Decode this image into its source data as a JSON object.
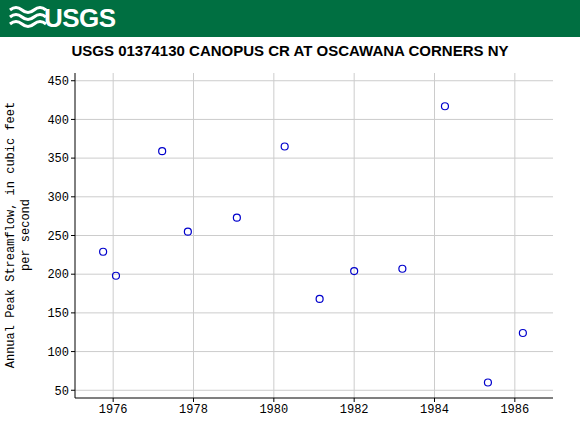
{
  "banner": "USGS",
  "chart_data": {
    "type": "scatter",
    "title": "USGS 01374130 CANOPUS CR AT OSCAWANA CORNERS NY",
    "y_label": "Annual Peak Streamflow, in cubic feet per second",
    "x": [
      1975.75,
      1976.07,
      1977.22,
      1977.86,
      1979.08,
      1980.27,
      1981.14,
      1982.0,
      1983.2,
      1984.26,
      1985.33,
      1986.2
    ],
    "values": [
      229,
      198,
      359,
      255,
      273,
      365,
      168,
      204,
      207,
      417,
      60,
      124
    ],
    "color": "#0000cc",
    "marker": "open_circle",
    "xlim": [
      1975.05,
      1986.95
    ],
    "xticks": [
      1976,
      1978,
      1980,
      1982,
      1984,
      1986
    ],
    "ylim": [
      40,
      460
    ],
    "yticks": [
      50,
      100,
      150,
      200,
      250,
      300,
      350,
      400,
      450
    ],
    "grid": true
  }
}
